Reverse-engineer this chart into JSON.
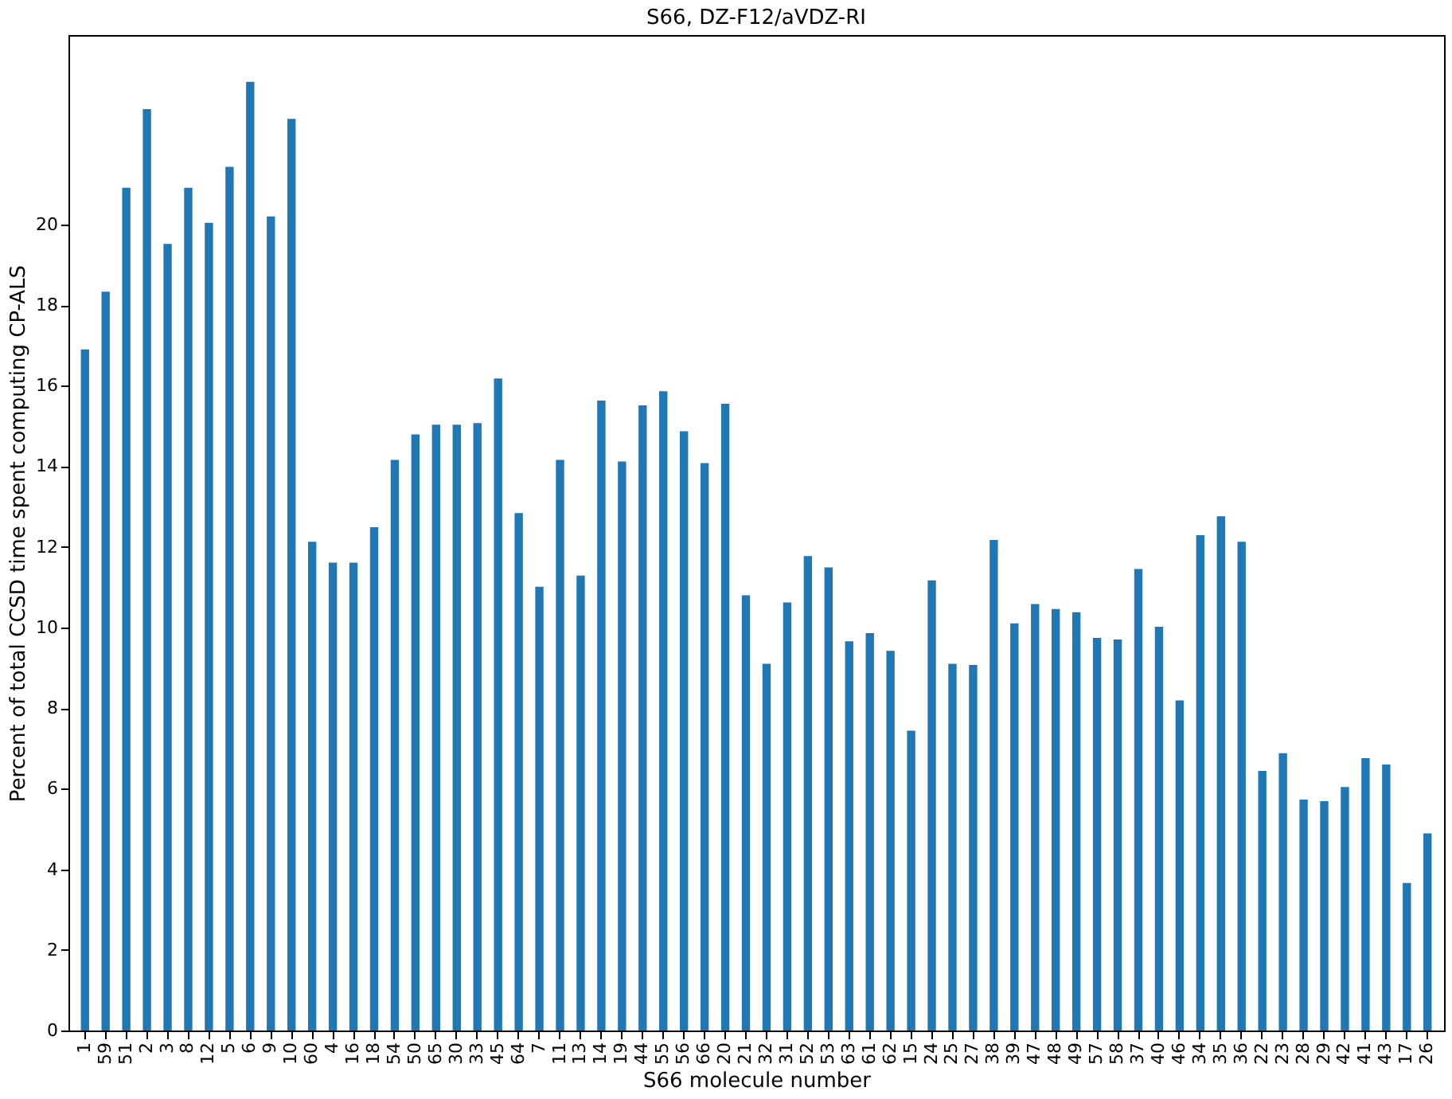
{
  "chart_data": {
    "type": "bar",
    "title": "S66, DZ-F12/aVDZ-RI",
    "xlabel": "S66 molecule number",
    "ylabel": "Percent of total CCSD time spent computing CP-ALS",
    "categories": [
      "1",
      "59",
      "51",
      "2",
      "3",
      "8",
      "12",
      "5",
      "6",
      "9",
      "10",
      "60",
      "4",
      "16",
      "18",
      "54",
      "50",
      "65",
      "30",
      "33",
      "45",
      "64",
      "7",
      "11",
      "13",
      "14",
      "19",
      "44",
      "55",
      "56",
      "66",
      "20",
      "21",
      "32",
      "31",
      "52",
      "53",
      "63",
      "61",
      "62",
      "15",
      "24",
      "25",
      "27",
      "38",
      "39",
      "47",
      "48",
      "49",
      "57",
      "58",
      "37",
      "40",
      "46",
      "34",
      "35",
      "36",
      "22",
      "23",
      "28",
      "29",
      "42",
      "41",
      "43",
      "17",
      "26"
    ],
    "values": [
      16.9,
      18.33,
      20.91,
      22.86,
      19.52,
      20.91,
      20.04,
      21.43,
      23.54,
      20.2,
      22.62,
      12.13,
      11.61,
      11.61,
      12.49,
      14.16,
      14.79,
      15.03,
      15.03,
      15.07,
      16.18,
      12.84,
      11.01,
      14.16,
      11.29,
      15.63,
      14.12,
      15.51,
      15.86,
      14.87,
      14.08,
      15.55,
      10.8,
      9.1,
      10.62,
      11.77,
      11.49,
      9.66,
      9.86,
      9.42,
      7.44,
      11.17,
      9.1,
      9.07,
      12.17,
      10.1,
      10.58,
      10.46,
      10.38,
      9.74,
      9.7,
      11.45,
      10.02,
      8.19,
      12.29,
      12.76,
      12.13,
      6.44,
      6.88,
      5.73,
      5.69,
      6.04,
      6.76,
      6.6,
      3.66,
      4.89
    ],
    "color": "#1f77b4",
    "ylim": [
      0,
      24.7
    ],
    "yticks": [
      0,
      2,
      4,
      6,
      8,
      10,
      12,
      14,
      16,
      18,
      20
    ],
    "grid": false
  }
}
